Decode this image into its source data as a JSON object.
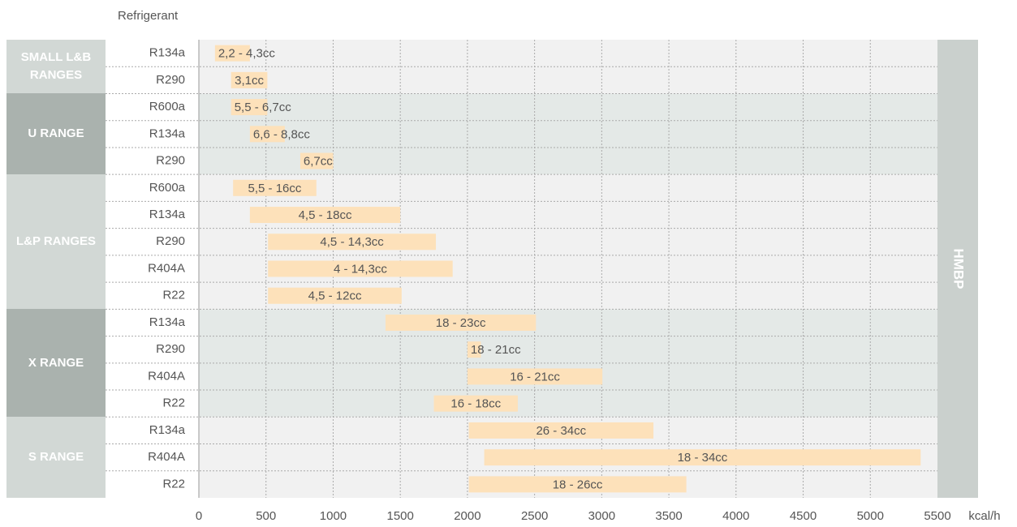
{
  "chart_data": {
    "type": "range-bar",
    "column_header": "Refrigerant",
    "side_label": "HMBP",
    "x_label": "kcal/h",
    "xlim": [
      0,
      5500
    ],
    "xticks": [
      0,
      500,
      1000,
      1500,
      2000,
      2500,
      3000,
      3500,
      4000,
      4500,
      5000,
      5500
    ],
    "grid": true,
    "bar_color": "#fde1ba",
    "groups": [
      {
        "name": "SMALL L&B RANGES",
        "rows": [
          {
            "refrigerant": "R134a",
            "low": 120,
            "high": 380,
            "label": "2,2 - 4,3cc"
          },
          {
            "refrigerant": "R290",
            "low": 240,
            "high": 510,
            "label": "3,1cc"
          }
        ]
      },
      {
        "name": "U RANGE",
        "rows": [
          {
            "refrigerant": "R600a",
            "low": 240,
            "high": 510,
            "label": "5,5 - 6,7cc"
          },
          {
            "refrigerant": "R134a",
            "low": 380,
            "high": 640,
            "label": "6,6 - 8,8cc"
          },
          {
            "refrigerant": "R290",
            "low": 755,
            "high": 1000,
            "label": "6,7cc"
          }
        ]
      },
      {
        "name": "L&P RANGES",
        "rows": [
          {
            "refrigerant": "R600a",
            "low": 255,
            "high": 875,
            "label": "5,5 - 16cc"
          },
          {
            "refrigerant": "R134a",
            "low": 380,
            "high": 1500,
            "label": "4,5 - 18cc"
          },
          {
            "refrigerant": "R290",
            "low": 515,
            "high": 1765,
            "label": "4,5 - 14,3cc"
          },
          {
            "refrigerant": "R404A",
            "low": 515,
            "high": 1890,
            "label": "4 - 14,3cc"
          },
          {
            "refrigerant": "R22",
            "low": 515,
            "high": 1510,
            "label": "4,5 - 12cc"
          }
        ]
      },
      {
        "name": "X RANGE",
        "rows": [
          {
            "refrigerant": "R134a",
            "low": 1390,
            "high": 2510,
            "label": "18 - 23cc"
          },
          {
            "refrigerant": "R290",
            "low": 2000,
            "high": 2100,
            "label": "18 - 21cc"
          },
          {
            "refrigerant": "R404A",
            "low": 2000,
            "high": 3005,
            "label": "16 - 21cc"
          },
          {
            "refrigerant": "R22",
            "low": 1750,
            "high": 2375,
            "label": "16 - 18cc"
          }
        ]
      },
      {
        "name": "S RANGE",
        "rows": [
          {
            "refrigerant": "R134a",
            "low": 2010,
            "high": 3385,
            "label": "26 - 34cc"
          },
          {
            "refrigerant": "R404A",
            "low": 2125,
            "high": 5375,
            "label": "18 - 34cc"
          },
          {
            "refrigerant": "R22",
            "low": 2010,
            "high": 3630,
            "label": "18 - 26cc"
          }
        ]
      }
    ]
  }
}
